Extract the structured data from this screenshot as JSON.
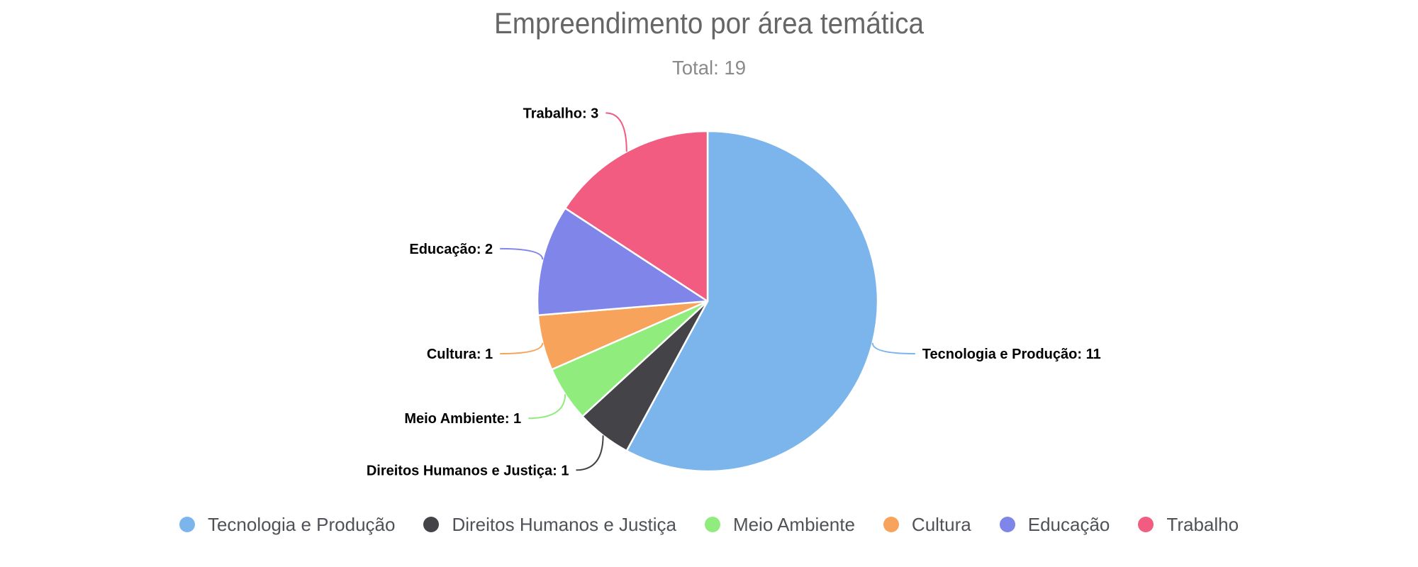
{
  "chart_data": {
    "type": "pie",
    "title": "Empreendimento por área temática",
    "subtitle": "Total: 19",
    "total": 19,
    "data_label_format": "{name}: {value}",
    "legend_position": "bottom",
    "background_color": "#ffffff",
    "slice_border_color": "#ffffff",
    "title_color": "#666666",
    "subtitle_color": "#8a8a8a",
    "data_label_color": "#000000",
    "legend_text_color": "#4f5257",
    "slices": [
      {
        "label": "Tecnologia e Produção",
        "value": 11,
        "color": "#7cb5ec"
      },
      {
        "label": "Direitos Humanos e Justiça",
        "value": 1,
        "color": "#434348"
      },
      {
        "label": "Meio Ambiente",
        "value": 1,
        "color": "#90ed7d"
      },
      {
        "label": "Cultura",
        "value": 1,
        "color": "#f7a35c"
      },
      {
        "label": "Educação",
        "value": 2,
        "color": "#8085e9"
      },
      {
        "label": "Trabalho",
        "value": 3,
        "color": "#f15c80"
      }
    ],
    "data_labels": [
      "Tecnologia e Produção: 11",
      "Direitos Humanos e Justiça: 1",
      "Meio Ambiente: 1",
      "Cultura: 1",
      "Educação: 2",
      "Trabalho: 3"
    ],
    "legend_items": [
      "Tecnologia e Produção",
      "Direitos Humanos e Justiça",
      "Meio Ambiente",
      "Cultura",
      "Educação",
      "Trabalho"
    ]
  }
}
